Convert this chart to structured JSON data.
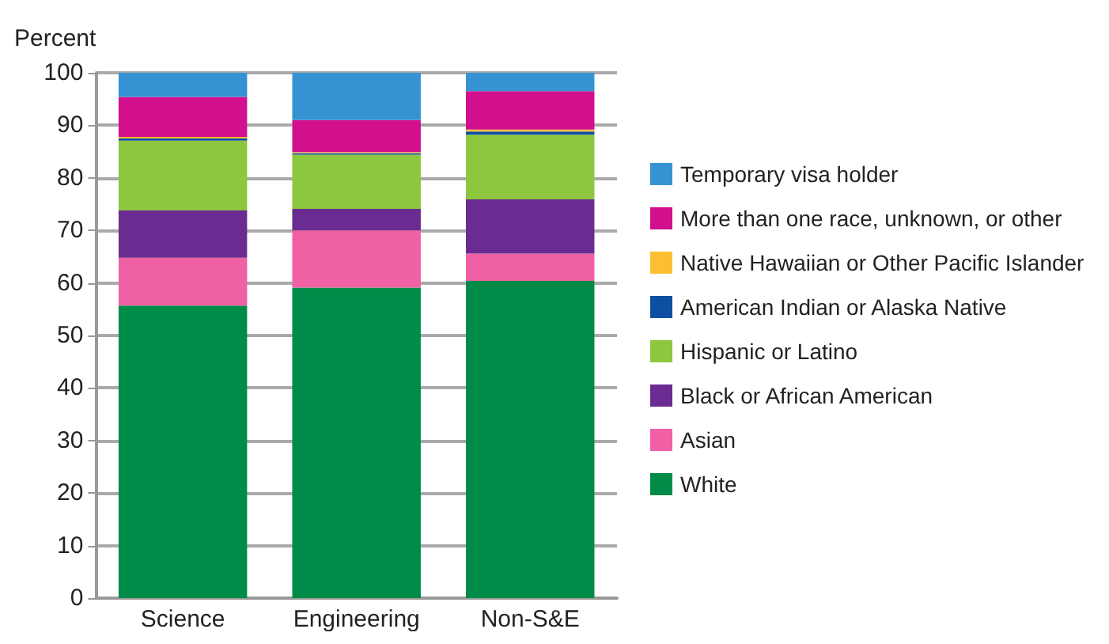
{
  "chart_data": {
    "type": "bar",
    "stacked": true,
    "ylabel": "Percent",
    "categories": [
      "Science",
      "Engineering",
      "Non-S&E"
    ],
    "series": [
      {
        "name": "White",
        "color": "#008c48",
        "values": [
          55.7,
          59.1,
          60.4
        ]
      },
      {
        "name": "Asian",
        "color": "#f060a4",
        "values": [
          9.1,
          10.9,
          5.2
        ]
      },
      {
        "name": "Black or African American",
        "color": "#6a2c90",
        "values": [
          9.0,
          4.1,
          10.3
        ]
      },
      {
        "name": "Hispanic or Latino",
        "color": "#8dc63f",
        "values": [
          13.3,
          10.3,
          12.3
        ]
      },
      {
        "name": "American Indian or Alaska Native",
        "color": "#0d4fa0",
        "values": [
          0.4,
          0.3,
          0.6
        ]
      },
      {
        "name": "Native Hawaiian or Other Pacific Islander",
        "color": "#fdbf32",
        "values": [
          0.3,
          0.2,
          0.4
        ]
      },
      {
        "name": "More than one race, unknown, or other",
        "color": "#d20f8c",
        "values": [
          7.6,
          6.1,
          7.3
        ]
      },
      {
        "name": "Temporary visa holder",
        "color": "#3593d3",
        "values": [
          4.6,
          9.0,
          3.5
        ]
      }
    ],
    "ylim": [
      0,
      100
    ],
    "yticks": [
      0,
      10,
      20,
      30,
      40,
      50,
      60,
      70,
      80,
      90,
      100
    ],
    "grid": "y",
    "legend": "right"
  }
}
